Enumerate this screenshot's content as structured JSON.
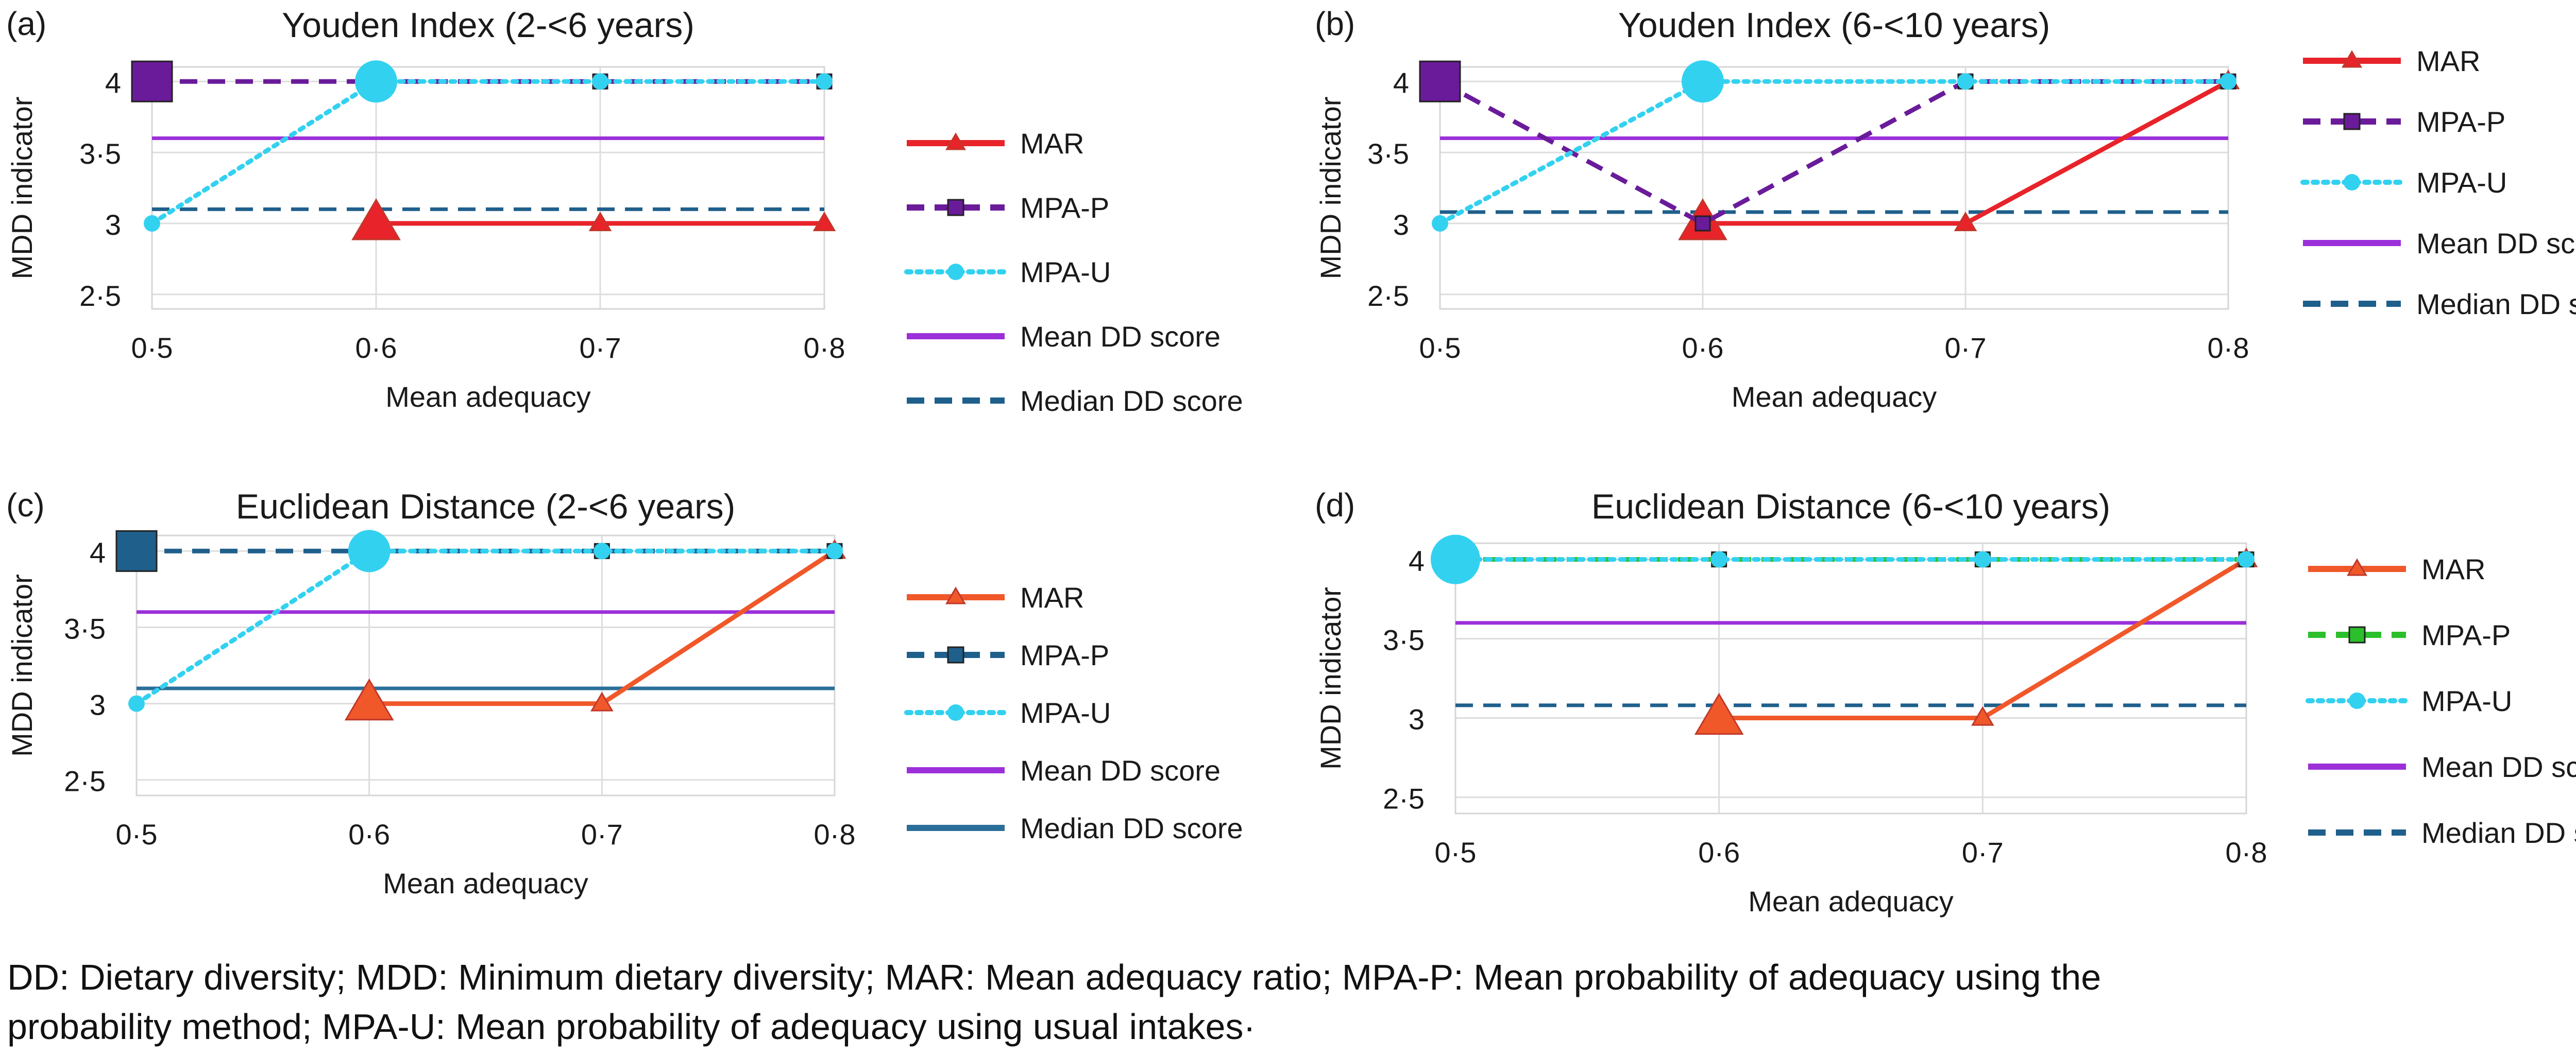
{
  "chart_data": [
    {
      "panel_label": "(a)",
      "title": "Youden Index (2-<6 years)",
      "type": "line",
      "xlabel": "Mean adequacy",
      "ylabel": "MDD indicator",
      "x": [
        0.5,
        0.6,
        0.7,
        0.8
      ],
      "x_tick_labels": [
        "0·5",
        "0·6",
        "0·7",
        "0·8"
      ],
      "y_ticks": [
        2.5,
        3,
        3.5,
        4
      ],
      "y_tick_labels": [
        "2·5",
        "3",
        "3·5",
        "4"
      ],
      "ylim": [
        2.5,
        4
      ],
      "grid": true,
      "legend_position": "right",
      "series": [
        {
          "name": "MAR",
          "x": [
            0.6,
            0.7,
            0.8
          ],
          "values": [
            3,
            3,
            3
          ],
          "color": "#e8232a",
          "style": "solid",
          "marker": "triangle"
        },
        {
          "name": "MPA-P",
          "x": [
            0.5,
            0.6,
            0.7,
            0.8
          ],
          "values": [
            4,
            4,
            4,
            4
          ],
          "color": "#6a1b9a",
          "style": "dashed",
          "marker": "square"
        },
        {
          "name": "MPA-U",
          "x": [
            0.5,
            0.6,
            0.7,
            0.8
          ],
          "values": [
            3,
            4,
            4,
            4
          ],
          "color": "#33d1f0",
          "style": "dotted",
          "marker": "circle"
        },
        {
          "name": "Mean DD score",
          "x": [
            0.5,
            0.8
          ],
          "values": [
            3.6,
            3.6
          ],
          "color": "#9b30d9",
          "style": "solid",
          "marker": "none"
        },
        {
          "name": "Median DD score",
          "x": [
            0.5,
            0.8
          ],
          "values": [
            3.1,
            3.1
          ],
          "color": "#1f5f8b",
          "style": "dashed",
          "marker": "none"
        }
      ]
    },
    {
      "panel_label": "(b)",
      "title": "Youden Index (6-<10 years)",
      "type": "line",
      "xlabel": "Mean adequacy",
      "ylabel": "MDD indicator",
      "x": [
        0.5,
        0.6,
        0.7,
        0.8
      ],
      "x_tick_labels": [
        "0·5",
        "0·6",
        "0·7",
        "0·8"
      ],
      "y_ticks": [
        2.5,
        3,
        3.5,
        4
      ],
      "y_tick_labels": [
        "2·5",
        "3",
        "3·5",
        "4"
      ],
      "ylim": [
        2.5,
        4
      ],
      "grid": true,
      "legend_position": "right",
      "series": [
        {
          "name": "MAR",
          "x": [
            0.6,
            0.7,
            0.8
          ],
          "values": [
            3,
            3,
            4
          ],
          "color": "#e8232a",
          "style": "solid",
          "marker": "triangle"
        },
        {
          "name": "MPA-P",
          "x": [
            0.5,
            0.6,
            0.7,
            0.8
          ],
          "values": [
            4,
            3,
            4,
            4
          ],
          "color": "#6a1b9a",
          "style": "dashed",
          "marker": "square"
        },
        {
          "name": "MPA-U",
          "x": [
            0.5,
            0.6,
            0.7,
            0.8
          ],
          "values": [
            3,
            4,
            4,
            4
          ],
          "color": "#33d1f0",
          "style": "dotted",
          "marker": "circle"
        },
        {
          "name": "Mean DD score",
          "x": [
            0.5,
            0.8
          ],
          "values": [
            3.6,
            3.6
          ],
          "color": "#9b30d9",
          "style": "solid",
          "marker": "none"
        },
        {
          "name": "Median DD score",
          "x": [
            0.5,
            0.8
          ],
          "values": [
            3.08,
            3.08
          ],
          "color": "#1f5f8b",
          "style": "dashed",
          "marker": "none"
        }
      ]
    },
    {
      "panel_label": "(c)",
      "title": "Euclidean Distance (2-<6 years)",
      "type": "line",
      "xlabel": "Mean adequacy",
      "ylabel": "MDD indicator",
      "x": [
        0.5,
        0.6,
        0.7,
        0.8
      ],
      "x_tick_labels": [
        "0·5",
        "0·6",
        "0·7",
        "0·8"
      ],
      "y_ticks": [
        2.5,
        3,
        3.5,
        4
      ],
      "y_tick_labels": [
        "2·5",
        "3",
        "3·5",
        "4"
      ],
      "ylim": [
        2.5,
        4
      ],
      "grid": true,
      "legend_position": "right",
      "series": [
        {
          "name": "MAR",
          "x": [
            0.6,
            0.7,
            0.8
          ],
          "values": [
            3,
            3,
            4
          ],
          "color": "#f0582a",
          "style": "solid",
          "marker": "triangle"
        },
        {
          "name": "MPA-P",
          "x": [
            0.5,
            0.6,
            0.7,
            0.8
          ],
          "values": [
            4,
            4,
            4,
            4
          ],
          "color": "#1f5f8b",
          "style": "dashed",
          "marker": "square"
        },
        {
          "name": "MPA-U",
          "x": [
            0.5,
            0.6,
            0.7,
            0.8
          ],
          "values": [
            3,
            4,
            4,
            4
          ],
          "color": "#33d1f0",
          "style": "dotted",
          "marker": "circle"
        },
        {
          "name": "Mean DD score",
          "x": [
            0.5,
            0.8
          ],
          "values": [
            3.6,
            3.6
          ],
          "color": "#9b30d9",
          "style": "solid",
          "marker": "none"
        },
        {
          "name": "Median DD score",
          "x": [
            0.5,
            0.8
          ],
          "values": [
            3.1,
            3.1
          ],
          "color": "#2a6f99",
          "style": "solid",
          "marker": "none"
        }
      ]
    },
    {
      "panel_label": "(d)",
      "title": "Euclidean Distance (6-<10 years)",
      "type": "line",
      "xlabel": "Mean adequacy",
      "ylabel": "MDD indicator",
      "x": [
        0.5,
        0.6,
        0.7,
        0.8
      ],
      "x_tick_labels": [
        "0·5",
        "0·6",
        "0·7",
        "0·8"
      ],
      "y_ticks": [
        2.5,
        3,
        3.5,
        4
      ],
      "y_tick_labels": [
        "2·5",
        "3",
        "3·5",
        "4"
      ],
      "ylim": [
        2.5,
        4
      ],
      "grid": true,
      "legend_position": "right",
      "series": [
        {
          "name": "MAR",
          "x": [
            0.6,
            0.7,
            0.8
          ],
          "values": [
            3,
            3,
            4
          ],
          "color": "#f0582a",
          "style": "solid",
          "marker": "triangle"
        },
        {
          "name": "MPA-P",
          "x": [
            0.5,
            0.6,
            0.7,
            0.8
          ],
          "values": [
            4,
            4,
            4,
            4
          ],
          "color": "#2bc02b",
          "style": "dashed",
          "marker": "square"
        },
        {
          "name": "MPA-U",
          "x": [
            0.5,
            0.6,
            0.7,
            0.8
          ],
          "values": [
            4,
            4,
            4,
            4
          ],
          "color": "#33d1f0",
          "style": "dotted",
          "marker": "circle"
        },
        {
          "name": "Mean DD score",
          "x": [
            0.5,
            0.8
          ],
          "values": [
            3.6,
            3.6
          ],
          "color": "#9b30d9",
          "style": "solid",
          "marker": "none"
        },
        {
          "name": "Median DD score",
          "x": [
            0.5,
            0.8
          ],
          "values": [
            3.08,
            3.08
          ],
          "color": "#1f5f8b",
          "style": "dashed",
          "marker": "none"
        }
      ]
    }
  ],
  "caption": {
    "line1": "DD: Dietary diversity; MDD: Minimum dietary diversity; MAR: Mean adequacy ratio; MPA-P: Mean probability of adequacy using the",
    "line2": "probability method; MPA-U: Mean probability of adequacy using usual intakes·"
  }
}
